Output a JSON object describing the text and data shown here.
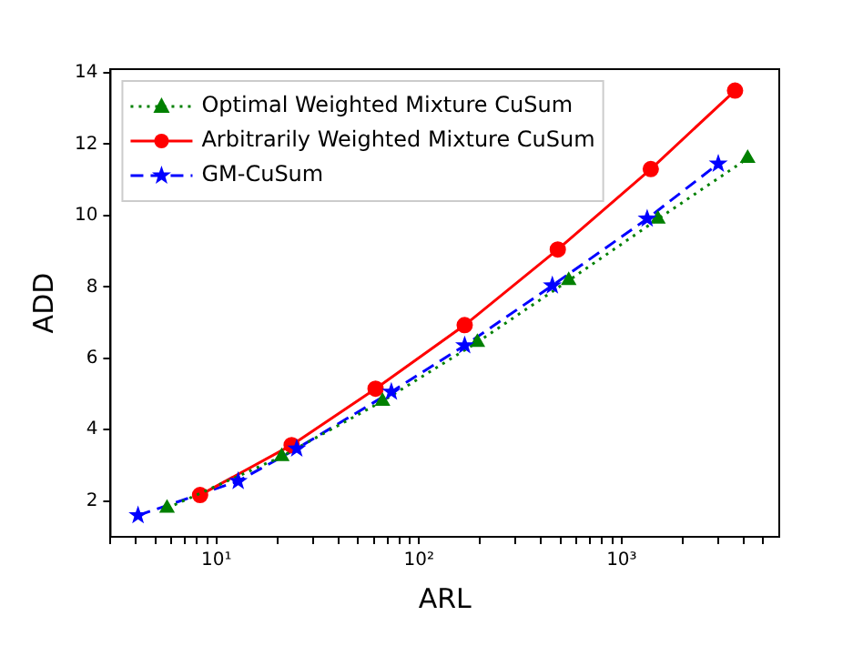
{
  "chart_data": {
    "type": "line",
    "xlabel": "ARL",
    "ylabel": "ADD",
    "log": "x",
    "grid": false,
    "legend": "top left",
    "xlim": [
      3,
      6000
    ],
    "ylim": [
      1.0,
      14.1
    ],
    "xticks": [
      {
        "value": 3,
        "label": null
      },
      {
        "value": 4,
        "label": null
      },
      {
        "value": 5,
        "label": null
      },
      {
        "value": 6,
        "label": null
      },
      {
        "value": 7,
        "label": null
      },
      {
        "value": 8,
        "label": null
      },
      {
        "value": 9,
        "label": null
      },
      {
        "value": 10,
        "label": "10¹"
      },
      {
        "value": 20,
        "label": null
      },
      {
        "value": 30,
        "label": null
      },
      {
        "value": 40,
        "label": null
      },
      {
        "value": 50,
        "label": null
      },
      {
        "value": 60,
        "label": null
      },
      {
        "value": 70,
        "label": null
      },
      {
        "value": 80,
        "label": null
      },
      {
        "value": 90,
        "label": null
      },
      {
        "value": 100,
        "label": "10²"
      },
      {
        "value": 200,
        "label": null
      },
      {
        "value": 300,
        "label": null
      },
      {
        "value": 400,
        "label": null
      },
      {
        "value": 500,
        "label": null
      },
      {
        "value": 600,
        "label": null
      },
      {
        "value": 700,
        "label": null
      },
      {
        "value": 800,
        "label": null
      },
      {
        "value": 900,
        "label": null
      },
      {
        "value": 1000,
        "label": "10³"
      },
      {
        "value": 2000,
        "label": null
      },
      {
        "value": 3000,
        "label": null
      },
      {
        "value": 4000,
        "label": null
      },
      {
        "value": 5000,
        "label": null
      }
    ],
    "yticks": [
      2,
      4,
      6,
      8,
      10,
      12,
      14
    ],
    "series": [
      {
        "name": "Optimal Weighted Mixture CuSum",
        "color": "#008000",
        "marker": "triangle",
        "line_style": "dotted",
        "x": [
          5.7,
          21,
          66,
          194,
          548,
          1510,
          4190
        ],
        "values": [
          1.8,
          3.25,
          4.8,
          6.45,
          8.18,
          9.9,
          11.6
        ]
      },
      {
        "name": "Arbitrarily Weighted Mixture CuSum",
        "color": "#ff0000",
        "marker": "circle",
        "line_style": "solid",
        "x": [
          8.3,
          23.5,
          61,
          168,
          484,
          1393,
          3630
        ],
        "values": [
          2.17,
          3.57,
          5.15,
          6.93,
          9.05,
          11.3,
          13.5
        ]
      },
      {
        "name": "GM-CuSum",
        "color": "#0000ff",
        "marker": "star",
        "line_style": "dashed",
        "x": [
          4.1,
          12.8,
          24.9,
          73,
          168,
          455,
          1337,
          3000
        ],
        "values": [
          1.6,
          2.56,
          3.47,
          5.06,
          6.36,
          8.04,
          9.91,
          11.45
        ]
      }
    ]
  }
}
